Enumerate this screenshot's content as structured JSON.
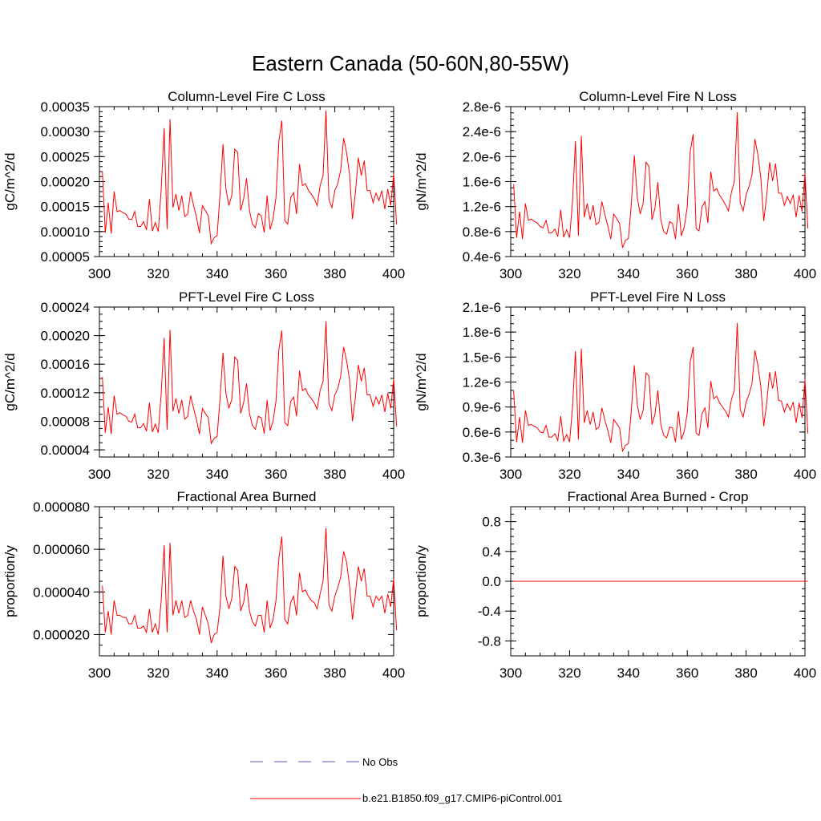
{
  "title": "Eastern Canada (50-60N,80-55W)",
  "colors": {
    "model": "#ff0000",
    "obs": "#5a5ac8",
    "axis": "#000000"
  },
  "legend": {
    "obs_label": "No Obs",
    "model_label": "b.e21.B1850.f09_g17.CMIP6-piControl.001"
  },
  "chart_data": [
    {
      "type": "line",
      "title": "Column-Level Fire C Loss",
      "ylabel": "gC/m^2/d",
      "xlim": [
        300,
        400
      ],
      "ylim": [
        5e-05,
        0.00035
      ],
      "x_ticks": [
        300,
        320,
        340,
        360,
        380,
        400
      ],
      "x_tick_labels": [
        "300",
        "320",
        "340",
        "360",
        "380",
        "400"
      ],
      "y_ticks": [
        5e-05,
        0.0001,
        0.00015,
        0.0002,
        0.00025,
        0.0003,
        0.00035
      ],
      "y_tick_labels": [
        "0.00005",
        "0.00010",
        "0.00015",
        "0.00020",
        "0.00025",
        "0.00030",
        "0.00035"
      ],
      "y_minor_step": 1e-05,
      "x_start": 301,
      "series": [
        {
          "name": "b.e21.B1850.f09_g17.CMIP6-piControl.001",
          "values": [
            0.000221,
            9.8e-05,
            0.000158,
            9.6e-05,
            0.00018,
            0.00014,
            0.000142,
            0.000138,
            0.000135,
            0.000125,
            0.000124,
            0.00014,
            0.00011,
            0.00011,
            0.00012,
            0.000103,
            0.000165,
            0.000101,
            0.000118,
            0.0001,
            0.000185,
            0.000307,
            0.000105,
            0.000325,
            0.000148,
            0.000175,
            0.000142,
            0.000172,
            0.00013,
            0.000135,
            0.00018,
            0.000152,
            0.000128,
            9.7e-05,
            0.000152,
            0.000142,
            0.000132,
            7.6e-05,
            8.8e-05,
            9.2e-05,
            0.000175,
            0.000275,
            0.000185,
            0.000152,
            0.000173,
            0.000265,
            0.000258,
            0.000142,
            0.000165,
            0.000207,
            0.000142,
            0.000115,
            0.000108,
            0.000136,
            0.000132,
            9.8e-05,
            0.000172,
            0.000104,
            0.000125,
            0.000168,
            0.000282,
            0.000322,
            0.000122,
            0.000115,
            0.000168,
            0.000178,
            0.000135,
            0.000235,
            0.000192,
            0.000196,
            0.000183,
            0.000175,
            0.000166,
            0.000152,
            0.000192,
            0.000212,
            0.000342,
            0.000164,
            0.000148,
            0.000182,
            0.000196,
            0.000223,
            0.000287,
            0.000258,
            0.000215,
            0.000125,
            0.000178,
            0.000248,
            0.000212,
            0.000242,
            0.000182,
            0.000182,
            0.000158,
            0.000177,
            0.000162,
            0.000182,
            0.000145,
            0.000185,
            0.000152,
            0.000215,
            0.000114
          ]
        }
      ]
    },
    {
      "type": "line",
      "title": "Column-Level Fire N Loss",
      "ylabel": "gN/m^2/d",
      "xlim": [
        300,
        400
      ],
      "ylim": [
        4e-07,
        2.8e-06
      ],
      "x_ticks": [
        300,
        320,
        340,
        360,
        380,
        400
      ],
      "x_tick_labels": [
        "300",
        "320",
        "340",
        "360",
        "380",
        "400"
      ],
      "y_ticks": [
        4e-07,
        8e-07,
        1.2e-06,
        1.6e-06,
        2e-06,
        2.4e-06,
        2.8e-06
      ],
      "y_tick_labels": [
        "0.4e-6",
        "0.8e-6",
        "1.2e-6",
        "1.6e-6",
        "2.0e-6",
        "2.4e-6",
        "2.8e-6"
      ],
      "y_minor_step": 1e-07,
      "x_start": 301,
      "series": [
        {
          "name": "b.e21.B1850.f09_g17.CMIP6-piControl.001",
          "values": [
            1.56e-06,
            7e-07,
            1.12e-06,
            6.8e-07,
            1.25e-06,
            9.8e-07,
            1e-06,
            9.6e-07,
            9.4e-07,
            8.8e-07,
            8.6e-07,
            9.8e-07,
            7.8e-07,
            7.8e-07,
            8.4e-07,
            7.2e-07,
            1.15e-06,
            7.1e-07,
            8.3e-07,
            7e-07,
            1.28e-06,
            2.25e-06,
            7.3e-07,
            2.33e-06,
            1.03e-06,
            1.25e-06,
            9.9e-07,
            1.22e-06,
            9.1e-07,
            9.5e-07,
            1.28e-06,
            1.07e-06,
            8.9e-07,
            6.8e-07,
            1.08e-06,
            1.01e-06,
            9.3e-07,
            5.4e-07,
            6.6e-07,
            6.9e-07,
            1.25e-06,
            2.02e-06,
            1.35e-06,
            1.08e-06,
            1.25e-06,
            1.91e-06,
            1.84e-06,
            9.9e-07,
            1.17e-06,
            1.59e-06,
            9.9e-07,
            8e-07,
            7.6e-07,
            9.6e-07,
            9.3e-07,
            6.8e-07,
            1.24e-06,
            7.3e-07,
            8.8e-07,
            1.2e-06,
            2.08e-06,
            2.36e-06,
            8.5e-07,
            8.1e-07,
            1.19e-06,
            1.28e-06,
            9.4e-07,
            1.76e-06,
            1.45e-06,
            1.49e-06,
            1.38e-06,
            1.31e-06,
            1.23e-06,
            1.13e-06,
            1.43e-06,
            1.6e-06,
            2.71e-06,
            1.26e-06,
            1.13e-06,
            1.39e-06,
            1.52e-06,
            1.71e-06,
            2.28e-06,
            2.03e-06,
            1.66e-06,
            9.7e-07,
            1.38e-06,
            1.91e-06,
            1.61e-06,
            1.89e-06,
            1.42e-06,
            1.41e-06,
            1.22e-06,
            1.36e-06,
            1.25e-06,
            1.39e-06,
            1.03e-06,
            1.38e-06,
            1.12e-06,
            1.73e-06,
            8.5e-07
          ]
        }
      ]
    },
    {
      "type": "line",
      "title": "PFT-Level Fire C Loss",
      "ylabel": "gC/m^2/d",
      "xlim": [
        300,
        400
      ],
      "ylim": [
        3e-05,
        0.00024
      ],
      "x_ticks": [
        300,
        320,
        340,
        360,
        380,
        400
      ],
      "x_tick_labels": [
        "300",
        "320",
        "340",
        "360",
        "380",
        "400"
      ],
      "y_ticks": [
        4e-05,
        8e-05,
        0.00012,
        0.00016,
        0.0002,
        0.00024
      ],
      "y_tick_labels": [
        "0.00004",
        "0.00008",
        "0.00012",
        "0.00016",
        "0.00020",
        "0.00024"
      ],
      "y_minor_step": 1e-05,
      "x_start": 301,
      "series": [
        {
          "name": "b.e21.B1850.f09_g17.CMIP6-piControl.001",
          "values": [
            0.000142,
            6.4e-05,
            0.0001,
            6.2e-05,
            0.000116,
            9e-05,
            9.2e-05,
            8.9e-05,
            8.7e-05,
            8e-05,
            7.9e-05,
            9e-05,
            7.1e-05,
            7.1e-05,
            7.7e-05,
            6.6e-05,
            0.000106,
            6.5e-05,
            7.6e-05,
            6.4e-05,
            0.000119,
            0.000197,
            6.8e-05,
            0.000208,
            9.4e-05,
            0.000112,
            9.1e-05,
            0.00011,
            8.3e-05,
            8.7e-05,
            0.000116,
            9.8e-05,
            8.2e-05,
            6.2e-05,
            9.8e-05,
            9.1e-05,
            8.5e-05,
            4.9e-05,
            5.6e-05,
            5.9e-05,
            0.000112,
            0.000176,
            0.000119,
            9.8e-05,
            0.000111,
            0.00017,
            0.000165,
            9.1e-05,
            0.000106,
            0.000133,
            9.1e-05,
            7.4e-05,
            6.9e-05,
            8.7e-05,
            8.5e-05,
            6.3e-05,
            0.00011,
            6.7e-05,
            8e-05,
            0.000108,
            0.000181,
            0.000207,
            7.8e-05,
            7.4e-05,
            0.000108,
            0.000114,
            8.7e-05,
            0.000151,
            0.000123,
            0.000126,
            0.000117,
            0.000112,
            0.000106,
            9.7e-05,
            0.000123,
            0.000136,
            0.00022,
            0.000105,
            9.5e-05,
            0.000117,
            0.000126,
            0.000143,
            0.000184,
            0.000165,
            0.000138,
            8e-05,
            0.000114,
            0.000159,
            0.000136,
            0.000155,
            0.000117,
            0.000117,
            0.000101,
            0.000114,
            0.000104,
            0.000117,
            9.3e-05,
            0.000119,
            9.8e-05,
            0.000139,
            7.3e-05
          ]
        }
      ]
    },
    {
      "type": "line",
      "title": "PFT-Level Fire N Loss",
      "ylabel": "gN/m^2/d",
      "xlim": [
        300,
        400
      ],
      "ylim": [
        3e-07,
        2.1e-06
      ],
      "x_ticks": [
        300,
        320,
        340,
        360,
        380,
        400
      ],
      "x_tick_labels": [
        "300",
        "320",
        "340",
        "360",
        "380",
        "400"
      ],
      "y_ticks": [
        3e-07,
        6e-07,
        9e-07,
        1.2e-06,
        1.5e-06,
        1.8e-06,
        2.1e-06
      ],
      "y_tick_labels": [
        "0.3e-6",
        "0.6e-6",
        "0.9e-6",
        "1.2e-6",
        "1.5e-6",
        "1.8e-6",
        "2.1e-6"
      ],
      "y_minor_step": 1e-07,
      "x_start": 301,
      "series": [
        {
          "name": "b.e21.B1850.f09_g17.CMIP6-piControl.001",
          "values": [
            1.09e-06,
            4.8e-07,
            7.8e-07,
            4.7e-07,
            8.6e-07,
            6.8e-07,
            6.9e-07,
            6.7e-07,
            6.5e-07,
            6e-07,
            5.9e-07,
            6.8e-07,
            5.4e-07,
            5.4e-07,
            5.8e-07,
            5e-07,
            7.9e-07,
            4.9e-07,
            5.7e-07,
            4.8e-07,
            8.9e-07,
            1.57e-06,
            5.1e-07,
            1.6e-06,
            7.1e-07,
            8.6e-07,
            6.9e-07,
            8.4e-07,
            6.3e-07,
            6.6e-07,
            8.9e-07,
            7.4e-07,
            6.2e-07,
            4.7e-07,
            7.5e-07,
            7e-07,
            6.5e-07,
            3.7e-07,
            4.4e-07,
            4.6e-07,
            8.6e-07,
            1.4e-06,
            9.3e-07,
            7.5e-07,
            8.6e-07,
            1.31e-06,
            1.27e-06,
            6.9e-07,
            8.1e-07,
            1.1e-06,
            6.9e-07,
            5.6e-07,
            5.3e-07,
            6.6e-07,
            6.5e-07,
            4.8e-07,
            8.5e-07,
            5.1e-07,
            6.1e-07,
            8.3e-07,
            1.44e-06,
            1.62e-06,
            5.9e-07,
            5.6e-07,
            8.2e-07,
            8.9e-07,
            6.5e-07,
            1.21e-06,
            1e-06,
            1.03e-06,
            9.5e-07,
            9e-07,
            8.5e-07,
            7.8e-07,
            9.9e-07,
            1.1e-06,
            1.91e-06,
            8.7e-07,
            7.8e-07,
            9.6e-07,
            1.05e-06,
            1.18e-06,
            1.58e-06,
            1.4e-06,
            1.15e-06,
            6.7e-07,
            9.5e-07,
            1.32e-06,
            1.12e-06,
            1.33e-06,
            9.8e-07,
            9.7e-07,
            8.4e-07,
            9.4e-07,
            8.6e-07,
            9.6e-07,
            7.1e-07,
            9.5e-07,
            7.7e-07,
            1.23e-06,
            5.8e-07
          ]
        }
      ]
    },
    {
      "type": "line",
      "title": "Fractional Area Burned",
      "ylabel": "proportion/y",
      "xlim": [
        300,
        400
      ],
      "ylim": [
        1e-05,
        8e-05
      ],
      "x_ticks": [
        300,
        320,
        340,
        360,
        380,
        400
      ],
      "x_tick_labels": [
        "300",
        "320",
        "340",
        "360",
        "380",
        "400"
      ],
      "y_ticks": [
        2e-05,
        4e-05,
        6e-05,
        8e-05
      ],
      "y_tick_labels": [
        "0.000020",
        "0.000040",
        "0.000060",
        "0.000080"
      ],
      "y_minor_step": 5e-06,
      "x_start": 301,
      "series": [
        {
          "name": "b.e21.B1850.f09_g17.CMIP6-piControl.001",
          "values": [
            4.3e-05,
            2.1e-05,
            3.1e-05,
            2e-05,
            3.6e-05,
            2.9e-05,
            2.9e-05,
            2.8e-05,
            2.8e-05,
            2.5e-05,
            2.5e-05,
            2.9e-05,
            2.3e-05,
            2.3e-05,
            2.4e-05,
            2.1e-05,
            3.2e-05,
            2.1e-05,
            2.5e-05,
            2e-05,
            3.6e-05,
            6.2e-05,
            2.1e-05,
            6.3e-05,
            2.9e-05,
            3.6e-05,
            3e-05,
            3.6e-05,
            2.8e-05,
            2.9e-05,
            3.6e-05,
            3.1e-05,
            2.7e-05,
            2e-05,
            3.3e-05,
            2.9e-05,
            2.5e-05,
            1.6e-05,
            2e-05,
            2.1e-05,
            3.3e-05,
            5.7e-05,
            3.8e-05,
            3.2e-05,
            3.7e-05,
            5.2e-05,
            5e-05,
            3.1e-05,
            3.5e-05,
            4.4e-05,
            3.1e-05,
            2.6e-05,
            2.4e-05,
            2.9e-05,
            2.9e-05,
            2.1e-05,
            3.6e-05,
            2.3e-05,
            2.7e-05,
            3.6e-05,
            5.6e-05,
            6.6e-05,
            2.7e-05,
            2.5e-05,
            3.5e-05,
            3.8e-05,
            2.9e-05,
            4.9e-05,
            4e-05,
            4.1e-05,
            3.8e-05,
            3.6e-05,
            3.5e-05,
            3.2e-05,
            3.9e-05,
            4.5e-05,
            7e-05,
            3.4e-05,
            3.1e-05,
            3.8e-05,
            4.2e-05,
            4.7e-05,
            5.9e-05,
            5.4e-05,
            4.3e-05,
            2.7e-05,
            3.9e-05,
            5.2e-05,
            4.5e-05,
            5.1e-05,
            3.8e-05,
            3.8e-05,
            3.3e-05,
            3.8e-05,
            3.6e-05,
            3.8e-05,
            3e-05,
            3.9e-05,
            3.3e-05,
            4.6e-05,
            2.2e-05
          ]
        }
      ]
    },
    {
      "type": "line",
      "title": "Fractional Area Burned - Crop",
      "ylabel": "proportion/y",
      "xlim": [
        300,
        400
      ],
      "ylim": [
        -1,
        1
      ],
      "x_ticks": [
        300,
        320,
        340,
        360,
        380,
        400
      ],
      "x_tick_labels": [
        "300",
        "320",
        "340",
        "360",
        "380",
        "400"
      ],
      "y_ticks": [
        -0.8,
        -0.4,
        0,
        0.4,
        0.8
      ],
      "y_tick_labels": [
        "-0.8",
        "-0.4",
        "0.0",
        "0.4",
        "0.8"
      ],
      "y_minor_step": 0.1,
      "x_start": 301,
      "series": [
        {
          "name": "b.e21.B1850.f09_g17.CMIP6-piControl.001",
          "values": [
            0,
            0,
            0,
            0,
            0,
            0,
            0,
            0,
            0,
            0,
            0,
            0,
            0,
            0,
            0,
            0,
            0,
            0,
            0,
            0,
            0,
            0,
            0,
            0,
            0,
            0,
            0,
            0,
            0,
            0,
            0,
            0,
            0,
            0,
            0,
            0,
            0,
            0,
            0,
            0,
            0,
            0,
            0,
            0,
            0,
            0,
            0,
            0,
            0,
            0,
            0,
            0,
            0,
            0,
            0,
            0,
            0,
            0,
            0,
            0,
            0,
            0,
            0,
            0,
            0,
            0,
            0,
            0,
            0,
            0,
            0,
            0,
            0,
            0,
            0,
            0,
            0,
            0,
            0,
            0,
            0,
            0,
            0,
            0,
            0,
            0,
            0,
            0,
            0,
            0,
            0,
            0,
            0,
            0,
            0,
            0,
            0,
            0,
            0,
            0,
            0
          ]
        }
      ]
    }
  ]
}
